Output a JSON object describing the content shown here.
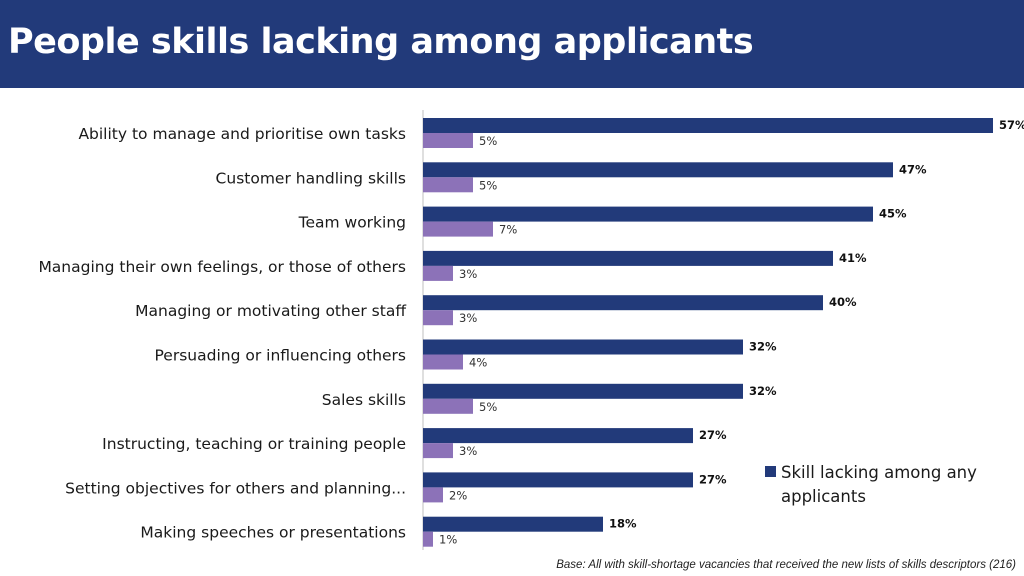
{
  "slide": {
    "title": "People skills lacking among applicants",
    "footnote": "Base: All with skill-shortage vacancies that received the new lists of skills descriptors (216)"
  },
  "chart_data": {
    "type": "bar",
    "orientation": "horizontal",
    "categories": [
      "Ability to manage and prioritise own tasks",
      "Customer handling skills",
      "Team working",
      "Managing their own feelings, or those of others",
      "Managing or motivating other staff",
      "Persuading or influencing others",
      "Sales skills",
      "Instructing, teaching or training people",
      "Setting objectives for others and planning...",
      "Making speeches or presentations"
    ],
    "series": [
      {
        "name": "Skill lacking among any applicants",
        "values": [
          57,
          47,
          45,
          41,
          40,
          32,
          32,
          27,
          27,
          18
        ],
        "color": "#223a7a"
      },
      {
        "values": [
          5,
          5,
          7,
          3,
          3,
          4,
          5,
          3,
          2,
          1
        ],
        "color": "#8c72b8"
      }
    ],
    "value_suffix": "%",
    "xlim": [
      0,
      57
    ],
    "grid": false,
    "legend_position": "right"
  }
}
